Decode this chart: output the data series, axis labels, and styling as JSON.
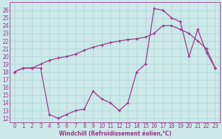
{
  "xlabel": "Windchill (Refroidissement éolien,°C)",
  "bg_color": "#cce8e8",
  "line_color": "#993388",
  "grid_color": "#aad4d4",
  "line1_x": [
    0,
    1,
    2,
    3,
    4,
    5,
    6,
    7,
    8,
    9,
    10,
    11,
    12,
    13,
    14,
    15,
    16,
    17,
    18,
    19,
    20,
    21,
    22,
    23
  ],
  "line1_y": [
    18.0,
    18.5,
    18.5,
    19.0,
    19.5,
    19.8,
    20.0,
    20.3,
    20.8,
    21.2,
    21.5,
    21.8,
    22.0,
    22.2,
    22.3,
    22.5,
    23.0,
    24.0,
    24.0,
    23.5,
    23.0,
    22.0,
    21.0,
    18.5
  ],
  "line2_x": [
    0,
    1,
    2,
    3,
    4,
    5,
    6,
    7,
    8,
    9,
    10,
    11,
    12,
    13,
    14,
    15,
    16,
    17,
    18,
    19,
    20,
    21,
    22,
    23
  ],
  "line2_y": [
    18.0,
    18.5,
    18.5,
    18.5,
    12.5,
    12.0,
    12.5,
    13.0,
    13.2,
    15.5,
    14.5,
    14.0,
    13.0,
    14.0,
    18.0,
    19.0,
    26.2,
    26.0,
    25.0,
    24.5,
    20.0,
    23.5,
    20.5,
    18.5
  ],
  "ylim": [
    11.5,
    27
  ],
  "xlim": [
    -0.5,
    23.5
  ],
  "yticks": [
    12,
    13,
    14,
    15,
    16,
    17,
    18,
    19,
    20,
    21,
    22,
    23,
    24,
    25,
    26
  ],
  "xticks": [
    0,
    1,
    2,
    3,
    4,
    5,
    6,
    7,
    8,
    9,
    10,
    11,
    12,
    13,
    14,
    15,
    16,
    17,
    18,
    19,
    20,
    21,
    22,
    23
  ],
  "tick_fontsize": 5.5,
  "xlabel_fontsize": 5.5
}
